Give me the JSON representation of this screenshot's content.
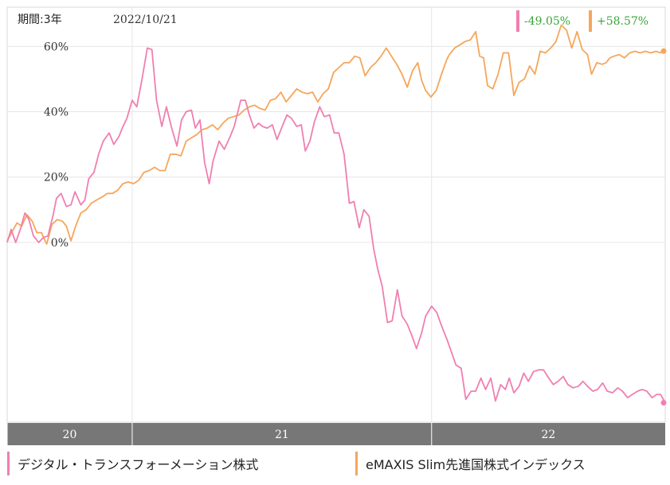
{
  "header": {
    "period": "期間:3年",
    "date": "2022/10/21"
  },
  "badges": [
    {
      "text": "-49.05%",
      "color": "#f07fb0"
    },
    {
      "text": "+58.57%",
      "color": "#f5a65b"
    }
  ],
  "chart_data": {
    "type": "line",
    "xlabel": "",
    "ylabel": "",
    "ylim": [
      -55,
      72
    ],
    "grid": true,
    "yticks": [
      {
        "value": 0,
        "label": "0%"
      },
      {
        "value": 20,
        "label": "20%"
      },
      {
        "value": 40,
        "label": "40%"
      },
      {
        "value": 60,
        "label": "60%"
      }
    ],
    "x_axis_bands": [
      {
        "label": "20",
        "start": 0,
        "end": 1.9
      },
      {
        "label": "21",
        "start": 1.9,
        "end": 6.45
      },
      {
        "label": "22",
        "start": 6.45,
        "end": 10
      }
    ],
    "xlim": [
      0,
      10
    ],
    "series": [
      {
        "name": "デジタル・トランスフォーメーション株式",
        "color": "#f07fb0",
        "points": [
          [
            0.0,
            0.0
          ],
          [
            0.06,
            4.0
          ],
          [
            0.13,
            0.0
          ],
          [
            0.2,
            4.0
          ],
          [
            0.27,
            9.0
          ],
          [
            0.33,
            7.0
          ],
          [
            0.4,
            2.0
          ],
          [
            0.48,
            0.0
          ],
          [
            0.55,
            1.5
          ],
          [
            0.62,
            2.0
          ],
          [
            0.7,
            8.5
          ],
          [
            0.75,
            13.5
          ],
          [
            0.82,
            15.0
          ],
          [
            0.9,
            11.0
          ],
          [
            0.97,
            11.5
          ],
          [
            1.03,
            15.5
          ],
          [
            1.12,
            11.5
          ],
          [
            1.18,
            13.0
          ],
          [
            1.24,
            19.5
          ],
          [
            1.32,
            21.5
          ],
          [
            1.39,
            27.0
          ],
          [
            1.46,
            31.0
          ],
          [
            1.55,
            33.5
          ],
          [
            1.62,
            30.0
          ],
          [
            1.7,
            32.5
          ],
          [
            1.75,
            35.0
          ],
          [
            1.82,
            38.0
          ],
          [
            1.9,
            43.5
          ],
          [
            1.97,
            41.5
          ],
          [
            2.05,
            50.0
          ],
          [
            2.13,
            59.5
          ],
          [
            2.2,
            59.0
          ],
          [
            2.27,
            43.5
          ],
          [
            2.35,
            35.5
          ],
          [
            2.42,
            41.5
          ],
          [
            2.5,
            35.0
          ],
          [
            2.58,
            29.5
          ],
          [
            2.65,
            37.5
          ],
          [
            2.72,
            40.0
          ],
          [
            2.8,
            40.5
          ],
          [
            2.86,
            35.0
          ],
          [
            2.93,
            37.5
          ],
          [
            3.0,
            24.5
          ],
          [
            3.07,
            18.0
          ],
          [
            3.13,
            25.0
          ],
          [
            3.22,
            31.0
          ],
          [
            3.3,
            28.5
          ],
          [
            3.38,
            32.0
          ],
          [
            3.45,
            35.5
          ],
          [
            3.55,
            43.5
          ],
          [
            3.62,
            43.5
          ],
          [
            3.68,
            39.0
          ],
          [
            3.75,
            35.0
          ],
          [
            3.82,
            36.5
          ],
          [
            3.88,
            35.5
          ],
          [
            3.95,
            35.0
          ],
          [
            4.03,
            36.0
          ],
          [
            4.1,
            31.5
          ],
          [
            4.17,
            35.0
          ],
          [
            4.25,
            39.0
          ],
          [
            4.32,
            38.0
          ],
          [
            4.4,
            35.5
          ],
          [
            4.47,
            36.0
          ],
          [
            4.53,
            28.0
          ],
          [
            4.6,
            31.0
          ],
          [
            4.67,
            37.0
          ],
          [
            4.75,
            41.5
          ],
          [
            4.82,
            38.5
          ],
          [
            4.9,
            39.0
          ],
          [
            4.97,
            33.5
          ],
          [
            5.04,
            33.5
          ],
          [
            5.12,
            27.0
          ],
          [
            5.2,
            12.0
          ],
          [
            5.27,
            12.5
          ],
          [
            5.35,
            4.5
          ],
          [
            5.42,
            10.0
          ],
          [
            5.5,
            8.0
          ],
          [
            5.57,
            -2.0
          ],
          [
            5.63,
            -8.0
          ],
          [
            5.7,
            -13.5
          ],
          [
            5.78,
            -24.5
          ],
          [
            5.85,
            -24.0
          ],
          [
            5.93,
            -14.5
          ],
          [
            6.0,
            -22.5
          ],
          [
            6.08,
            -25.0
          ],
          [
            6.15,
            -28.5
          ],
          [
            6.22,
            -32.5
          ],
          [
            6.3,
            -27.5
          ],
          [
            6.36,
            -22.5
          ],
          [
            6.45,
            -19.5
          ],
          [
            6.53,
            -21.5
          ],
          [
            6.6,
            -25.5
          ],
          [
            6.68,
            -29.5
          ],
          [
            6.75,
            -33.5
          ],
          [
            6.82,
            -37.5
          ],
          [
            6.9,
            -38.5
          ],
          [
            6.97,
            -48.0
          ],
          [
            7.05,
            -45.5
          ],
          [
            7.12,
            -45.5
          ],
          [
            7.2,
            -41.5
          ],
          [
            7.27,
            -45.0
          ],
          [
            7.35,
            -41.5
          ],
          [
            7.42,
            -48.5
          ],
          [
            7.5,
            -43.5
          ],
          [
            7.57,
            -45.0
          ],
          [
            7.63,
            -41.5
          ],
          [
            7.7,
            -46.0
          ],
          [
            7.78,
            -44.0
          ],
          [
            7.85,
            -40.0
          ],
          [
            7.92,
            -42.5
          ],
          [
            8.0,
            -39.5
          ],
          [
            8.08,
            -39.0
          ],
          [
            8.15,
            -39.0
          ],
          [
            8.23,
            -41.5
          ],
          [
            8.3,
            -43.5
          ],
          [
            8.37,
            -42.5
          ],
          [
            8.45,
            -41.0
          ],
          [
            8.52,
            -43.5
          ],
          [
            8.6,
            -44.5
          ],
          [
            8.68,
            -44.0
          ],
          [
            8.75,
            -42.5
          ],
          [
            8.82,
            -44.0
          ],
          [
            8.9,
            -45.5
          ],
          [
            8.97,
            -45.0
          ],
          [
            9.05,
            -43.0
          ],
          [
            9.12,
            -45.5
          ],
          [
            9.2,
            -46.0
          ],
          [
            9.28,
            -44.5
          ],
          [
            9.35,
            -45.5
          ],
          [
            9.43,
            -47.5
          ],
          [
            9.5,
            -46.5
          ],
          [
            9.58,
            -45.5
          ],
          [
            9.65,
            -45.0
          ],
          [
            9.72,
            -45.5
          ],
          [
            9.8,
            -47.5
          ],
          [
            9.87,
            -46.5
          ],
          [
            9.93,
            -46.5
          ],
          [
            10.0,
            -49.05
          ]
        ]
      },
      {
        "name": "eMAXIS Slim先進国株式インデックス",
        "color": "#f5a65b",
        "points": [
          [
            0.0,
            0.5
          ],
          [
            0.08,
            3.5
          ],
          [
            0.15,
            6.0
          ],
          [
            0.22,
            5.0
          ],
          [
            0.3,
            8.5
          ],
          [
            0.38,
            6.5
          ],
          [
            0.45,
            3.0
          ],
          [
            0.52,
            3.0
          ],
          [
            0.6,
            -0.5
          ],
          [
            0.68,
            5.5
          ],
          [
            0.76,
            7.0
          ],
          [
            0.84,
            6.5
          ],
          [
            0.9,
            5.0
          ],
          [
            0.97,
            0.5
          ],
          [
            1.04,
            5.0
          ],
          [
            1.12,
            9.0
          ],
          [
            1.2,
            10.0
          ],
          [
            1.28,
            12.0
          ],
          [
            1.36,
            13.0
          ],
          [
            1.45,
            14.0
          ],
          [
            1.52,
            15.0
          ],
          [
            1.6,
            15.0
          ],
          [
            1.68,
            16.0
          ],
          [
            1.76,
            18.0
          ],
          [
            1.84,
            18.5
          ],
          [
            1.92,
            18.0
          ],
          [
            2.0,
            19.0
          ],
          [
            2.08,
            21.5
          ],
          [
            2.16,
            22.0
          ],
          [
            2.24,
            23.0
          ],
          [
            2.32,
            22.0
          ],
          [
            2.4,
            22.0
          ],
          [
            2.48,
            27.0
          ],
          [
            2.56,
            27.0
          ],
          [
            2.64,
            26.5
          ],
          [
            2.72,
            31.0
          ],
          [
            2.8,
            32.0
          ],
          [
            2.88,
            33.0
          ],
          [
            2.96,
            34.5
          ],
          [
            3.04,
            35.0
          ],
          [
            3.12,
            36.0
          ],
          [
            3.2,
            34.5
          ],
          [
            3.28,
            36.5
          ],
          [
            3.36,
            38.0
          ],
          [
            3.44,
            38.5
          ],
          [
            3.52,
            39.0
          ],
          [
            3.6,
            40.5
          ],
          [
            3.68,
            41.5
          ],
          [
            3.76,
            42.0
          ],
          [
            3.84,
            41.0
          ],
          [
            3.92,
            40.5
          ],
          [
            4.0,
            43.5
          ],
          [
            4.08,
            44.0
          ],
          [
            4.16,
            46.0
          ],
          [
            4.24,
            43.0
          ],
          [
            4.32,
            45.0
          ],
          [
            4.4,
            47.0
          ],
          [
            4.48,
            46.0
          ],
          [
            4.56,
            45.5
          ],
          [
            4.64,
            46.0
          ],
          [
            4.72,
            43.0
          ],
          [
            4.8,
            45.5
          ],
          [
            4.88,
            47.0
          ],
          [
            4.96,
            52.0
          ],
          [
            5.04,
            53.5
          ],
          [
            5.12,
            55.0
          ],
          [
            5.2,
            55.0
          ],
          [
            5.28,
            57.0
          ],
          [
            5.36,
            56.5
          ],
          [
            5.44,
            51.0
          ],
          [
            5.52,
            53.5
          ],
          [
            5.6,
            55.0
          ],
          [
            5.68,
            57.0
          ],
          [
            5.76,
            59.5
          ],
          [
            5.84,
            57.0
          ],
          [
            5.92,
            54.5
          ],
          [
            6.0,
            51.5
          ],
          [
            6.08,
            47.5
          ],
          [
            6.16,
            52.5
          ],
          [
            6.24,
            55.0
          ],
          [
            6.3,
            49.5
          ],
          [
            6.36,
            46.5
          ],
          [
            6.44,
            44.5
          ],
          [
            6.52,
            46.5
          ],
          [
            6.6,
            51.5
          ],
          [
            6.68,
            56.0
          ],
          [
            6.72,
            57.5
          ],
          [
            6.8,
            59.5
          ],
          [
            6.88,
            60.5
          ],
          [
            6.96,
            61.5
          ],
          [
            7.04,
            62.0
          ],
          [
            7.12,
            64.5
          ],
          [
            7.18,
            57.0
          ],
          [
            7.24,
            56.5
          ],
          [
            7.3,
            48.0
          ],
          [
            7.38,
            47.0
          ],
          [
            7.46,
            51.5
          ],
          [
            7.54,
            58.0
          ],
          [
            7.62,
            58.0
          ],
          [
            7.7,
            45.0
          ],
          [
            7.78,
            49.0
          ],
          [
            7.86,
            50.0
          ],
          [
            7.94,
            54.0
          ],
          [
            8.02,
            51.5
          ],
          [
            8.1,
            58.5
          ],
          [
            8.18,
            58.0
          ],
          [
            8.26,
            59.5
          ],
          [
            8.34,
            61.5
          ],
          [
            8.42,
            66.5
          ],
          [
            8.5,
            65.0
          ],
          [
            8.58,
            59.5
          ],
          [
            8.66,
            64.5
          ],
          [
            8.74,
            59.0
          ],
          [
            8.82,
            57.5
          ],
          [
            8.88,
            51.5
          ],
          [
            8.96,
            55.0
          ],
          [
            9.04,
            54.5
          ],
          [
            9.1,
            55.0
          ],
          [
            9.16,
            56.5
          ],
          [
            9.22,
            57.0
          ],
          [
            9.3,
            57.5
          ],
          [
            9.38,
            56.5
          ],
          [
            9.46,
            58.0
          ],
          [
            9.54,
            58.5
          ],
          [
            9.62,
            58.0
          ],
          [
            9.7,
            58.5
          ],
          [
            9.78,
            58.0
          ],
          [
            9.86,
            58.5
          ],
          [
            9.93,
            58.0
          ],
          [
            10.0,
            58.57
          ]
        ]
      }
    ]
  },
  "legend": {
    "a_label": "デジタル・トランスフォーメーション株式",
    "b_label": "eMAXIS Slim先進国株式インデックス",
    "a_color": "#f07fb0",
    "b_color": "#f5a65b"
  }
}
